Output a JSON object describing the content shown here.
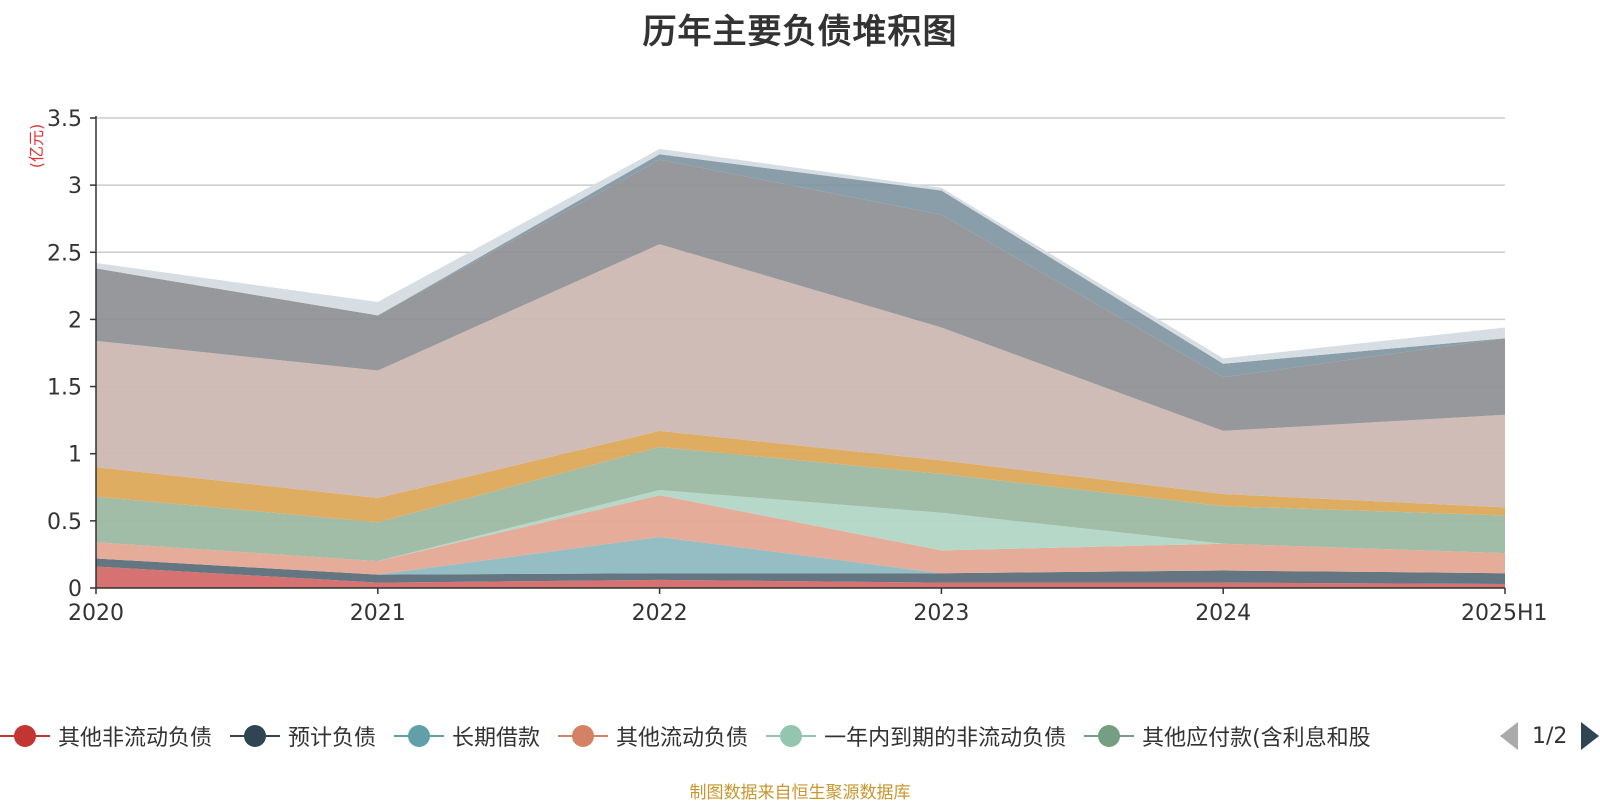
{
  "title": "历年主要负债堆积图",
  "source_note": "制图数据来自恒生聚源数据库",
  "legend": {
    "items": [
      {
        "label": "其他非流动负债",
        "color": "#c23531"
      },
      {
        "label": "预计负债",
        "color": "#2f4554"
      },
      {
        "label": "长期借款",
        "color": "#61a0a8"
      },
      {
        "label": "其他流动负债",
        "color": "#d48265"
      },
      {
        "label": "一年内到期的非流动负债",
        "color": "#91c7ae"
      },
      {
        "label": "其他应付款(含利息和股",
        "color": "#749f83"
      }
    ],
    "page": "1/2"
  },
  "chart_data": {
    "type": "area",
    "stacked": true,
    "title": "历年主要负债堆积图",
    "ylabel": "(亿元)",
    "ylim": [
      0,
      3.5
    ],
    "yticks": [
      0,
      0.5,
      1,
      1.5,
      2,
      2.5,
      3,
      3.5
    ],
    "ytick_labels": [
      "0",
      "0.5",
      "1",
      "1.5",
      "2",
      "2.5",
      "3",
      "3.5"
    ],
    "grid": true,
    "legend_position": "bottom",
    "categories": [
      "2020",
      "2021",
      "2022",
      "2023",
      "2024",
      "2025H1"
    ],
    "series": [
      {
        "name": "其他非流动负债",
        "color": "#c23531",
        "values": [
          0.16,
          0.04,
          0.06,
          0.04,
          0.04,
          0.03
        ]
      },
      {
        "name": "预计负债",
        "color": "#2f4554",
        "values": [
          0.06,
          0.06,
          0.05,
          0.07,
          0.09,
          0.08
        ]
      },
      {
        "name": "长期借款",
        "color": "#61a0a8",
        "values": [
          0.0,
          0.0,
          0.27,
          0.0,
          0.0,
          0.0
        ]
      },
      {
        "name": "其他流动负债",
        "color": "#d48265",
        "values": [
          0.12,
          0.1,
          0.31,
          0.17,
          0.2,
          0.15
        ]
      },
      {
        "name": "一年内到期的非流动负债",
        "color": "#91c7ae",
        "values": [
          0.0,
          0.0,
          0.04,
          0.28,
          0.0,
          0.0
        ]
      },
      {
        "name": "其他应付款(含利息和股",
        "values": [
          0.34,
          0.29,
          0.32,
          0.29,
          0.28,
          0.28
        ]
      },
      {
        "values": [
          0.22,
          0.18,
          0.12,
          0.1,
          0.09,
          0.06
        ]
      },
      {
        "values": [
          0.94,
          0.95,
          1.39,
          0.99,
          0.47,
          0.69
        ]
      },
      {
        "values": [
          0.54,
          0.41,
          0.63,
          0.84,
          0.4,
          0.57
        ]
      },
      {
        "values": [
          0.0,
          0.0,
          0.04,
          0.18,
          0.1,
          0.0
        ]
      },
      {
        "values": [
          0.04,
          0.1,
          0.04,
          0.02,
          0.04,
          0.08
        ]
      }
    ]
  }
}
